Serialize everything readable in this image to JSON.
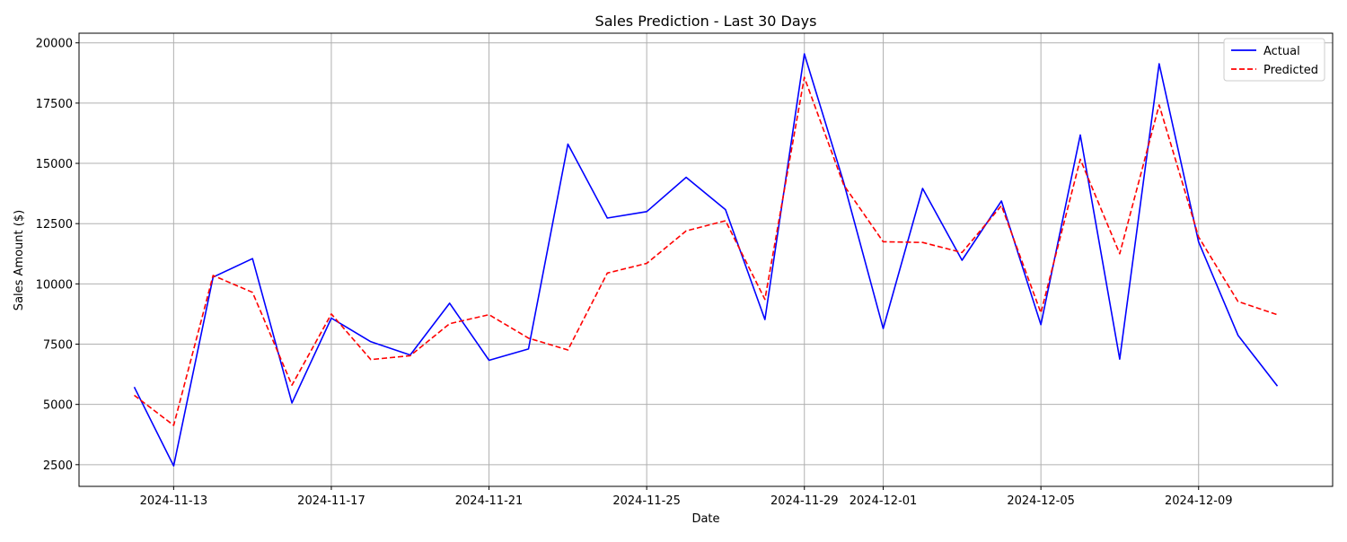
{
  "chart_data": {
    "type": "line",
    "title": "Sales Prediction - Last 30 Days",
    "xlabel": "Date",
    "ylabel": "Sales Amount ($)",
    "x": [
      "2024-11-12",
      "2024-11-13",
      "2024-11-14",
      "2024-11-15",
      "2024-11-16",
      "2024-11-17",
      "2024-11-18",
      "2024-11-19",
      "2024-11-20",
      "2024-11-21",
      "2024-11-22",
      "2024-11-23",
      "2024-11-24",
      "2024-11-25",
      "2024-11-26",
      "2024-11-27",
      "2024-11-28",
      "2024-11-29",
      "2024-11-30",
      "2024-12-01",
      "2024-12-02",
      "2024-12-03",
      "2024-12-04",
      "2024-12-05",
      "2024-12-06",
      "2024-12-07",
      "2024-12-08",
      "2024-12-09",
      "2024-12-10",
      "2024-12-11"
    ],
    "xlim": [
      "2024-11-10T14:24",
      "2024-12-12T09:36"
    ],
    "ylim": [
      1600,
      20400
    ],
    "xticks": [
      "2024-11-13",
      "2024-11-17",
      "2024-11-21",
      "2024-11-25",
      "2024-11-29",
      "2024-12-01",
      "2024-12-05",
      "2024-12-09"
    ],
    "yticks": [
      2500,
      5000,
      7500,
      10000,
      12500,
      15000,
      17500,
      20000
    ],
    "grid": true,
    "legend_position": "top-right",
    "series": [
      {
        "name": "Actual",
        "color": "#0000ff",
        "style": "solid",
        "values": [
          5720,
          2450,
          10280,
          11050,
          5060,
          8580,
          7600,
          7050,
          9200,
          6830,
          7300,
          15800,
          12730,
          13000,
          14420,
          13080,
          8520,
          19540,
          14200,
          8150,
          13960,
          10980,
          13440,
          8310,
          16180,
          6880,
          19130,
          11750,
          7870,
          5760
        ]
      },
      {
        "name": "Predicted",
        "color": "#ff0000",
        "style": "dashed",
        "values": [
          5380,
          4130,
          10350,
          9650,
          5800,
          8750,
          6860,
          7020,
          8350,
          8720,
          7750,
          7260,
          10450,
          10850,
          12200,
          12620,
          9360,
          18570,
          14100,
          11750,
          11720,
          11300,
          13250,
          8800,
          15170,
          11250,
          17420,
          11950,
          9270,
          8720
        ]
      }
    ]
  }
}
